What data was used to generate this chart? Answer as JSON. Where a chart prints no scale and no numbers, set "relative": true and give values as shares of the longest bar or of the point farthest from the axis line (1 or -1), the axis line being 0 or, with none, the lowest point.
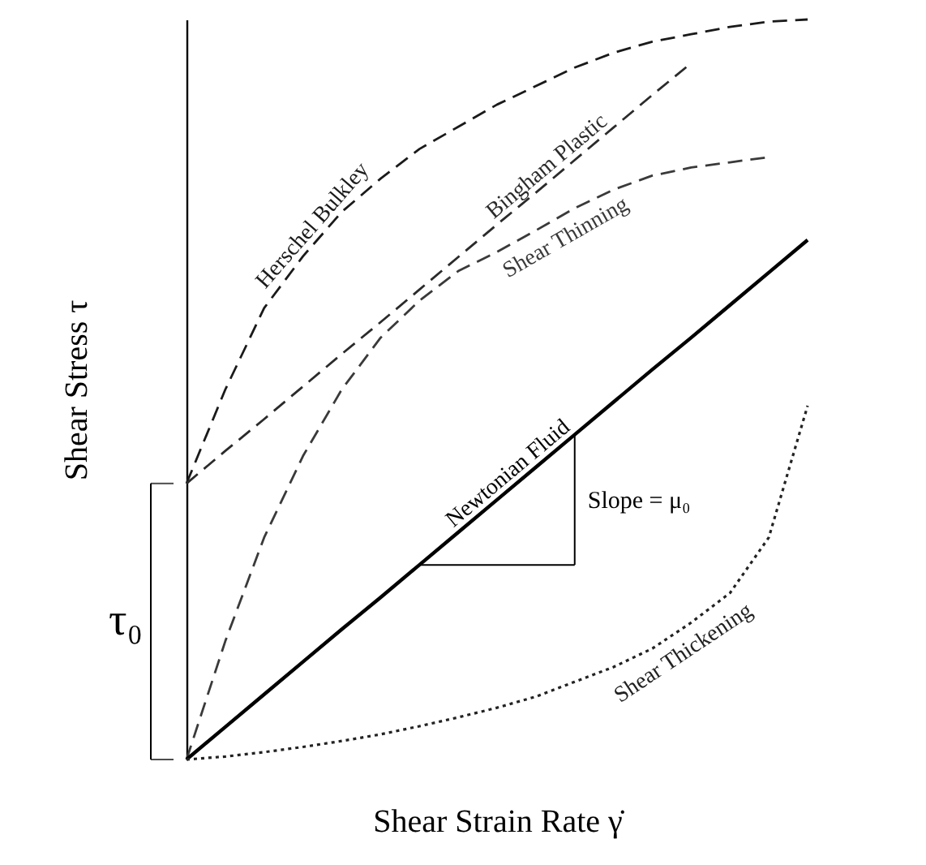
{
  "chart_data": {
    "type": "line",
    "relative": true,
    "xlabel": "Shear Strain Rate  γ̇",
    "ylabel": "Shear Stress   τ",
    "legend": false,
    "categories": [
      null,
      null,
      null,
      null,
      null,
      null,
      null,
      null,
      null,
      null,
      null,
      null,
      null,
      null,
      null,
      null,
      null
    ],
    "series": [
      {
        "name": "Herschel Bulkley",
        "color": "#1a1a1a",
        "line_style": "dashed",
        "values": [
          0.373,
          0.5,
          0.61,
          0.68,
          0.74,
          0.785,
          0.825,
          0.855,
          0.885,
          0.91,
          0.935,
          0.955,
          0.97,
          0.98,
          0.99,
          0.997,
          1
        ]
      },
      {
        "name": "Bingham Plastic",
        "color": "#2b2b2b",
        "line_style": "dashed",
        "values": [
          0.373,
          0.417,
          0.46,
          0.504,
          0.548,
          0.591,
          0.635,
          0.679,
          0.723,
          0.766,
          0.81,
          0.854,
          0.898,
          0.941,
          null,
          null,
          null
        ]
      },
      {
        "name": "Shear Thinning",
        "color": "#3a3a3a",
        "line_style": "dashed",
        "values": [
          0,
          0.16,
          0.3,
          0.41,
          0.5,
          0.57,
          0.62,
          0.66,
          0.686,
          0.715,
          0.745,
          0.77,
          0.789,
          0.8,
          0.807,
          0.814,
          null
        ]
      },
      {
        "name": "Newtonian Fluid",
        "color": "#000000",
        "line_style": "solid",
        "values": [
          0,
          0.044,
          0.088,
          0.132,
          0.176,
          0.219,
          0.263,
          0.307,
          0.351,
          0.395,
          0.439,
          0.483,
          0.527,
          0.57,
          0.614,
          0.658,
          0.702
        ]
      },
      {
        "name": "Shear Thickening",
        "color": "#222222",
        "line_style": "dotted",
        "values": [
          0,
          0.004,
          0.01,
          0.017,
          0.025,
          0.034,
          0.045,
          0.057,
          0.07,
          0.085,
          0.105,
          0.125,
          0.15,
          0.185,
          0.225,
          0.3,
          0.478
        ]
      }
    ],
    "annotations": [
      "τ₀",
      "Slope = μ₀"
    ]
  }
}
